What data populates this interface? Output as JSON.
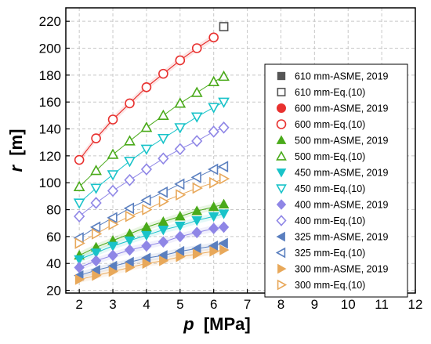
{
  "chart_data": {
    "type": "scatter",
    "title": "",
    "xlabel": "p [MPa]",
    "ylabel": "r [m]",
    "xlabel_var": "p",
    "xlabel_unit": "[MPa]",
    "ylabel_var": "r",
    "ylabel_unit": "[m]",
    "xlim": [
      1.6,
      12
    ],
    "ylim": [
      18,
      230
    ],
    "xticks": [
      2,
      3,
      4,
      5,
      6,
      7,
      8,
      9,
      10,
      11,
      12
    ],
    "yticks": [
      20,
      40,
      60,
      80,
      100,
      120,
      140,
      160,
      180,
      200,
      220
    ],
    "grid": true,
    "legend_position": "right",
    "series": [
      {
        "name": "610 mm-ASME, 2019",
        "marker": "square",
        "filled": true,
        "color": "#555555",
        "x": [
          6.3
        ],
        "y": [
          216
        ]
      },
      {
        "name": "610 mm-Eq.(10)",
        "marker": "square",
        "filled": false,
        "color": "#555555",
        "x": [
          6.3
        ],
        "y": [
          216
        ]
      },
      {
        "name": "600 mm-ASME, 2019",
        "marker": "circle",
        "filled": true,
        "color": "#e8312f",
        "x": [
          2.0,
          2.5,
          3.0,
          3.5,
          4.0,
          4.5,
          5.0,
          5.5,
          6.0
        ],
        "y": [
          117,
          133,
          147,
          159,
          171,
          181,
          191,
          200,
          208
        ]
      },
      {
        "name": "600 mm-Eq.(10)",
        "marker": "circle",
        "filled": false,
        "color": "#e8312f",
        "x": [
          2.0,
          2.5,
          3.0,
          3.5,
          4.0,
          4.5,
          5.0,
          5.5,
          6.0
        ],
        "y": [
          117,
          133,
          147,
          159,
          171,
          181,
          191,
          200,
          208
        ]
      },
      {
        "name": "500 mm-ASME, 2019",
        "marker": "triangle-up",
        "filled": true,
        "color": "#4aaa1a",
        "x": [
          2.0,
          2.5,
          3.0,
          3.5,
          4.0,
          4.5,
          5.0,
          5.5,
          6.0,
          6.3
        ],
        "y": [
          46,
          52,
          57,
          62,
          67,
          71,
          75,
          79,
          82,
          84
        ]
      },
      {
        "name": "500 mm-Eq.(10)",
        "marker": "triangle-up",
        "filled": false,
        "color": "#4aaa1a",
        "x": [
          2.0,
          2.5,
          3.0,
          3.5,
          4.0,
          4.5,
          5.0,
          5.5,
          6.0,
          6.3
        ],
        "y": [
          97,
          109,
          121,
          131,
          141,
          150,
          159,
          167,
          175,
          179
        ]
      },
      {
        "name": "450 mm-ASME, 2019",
        "marker": "triangle-down",
        "filled": true,
        "color": "#19c3c9",
        "x": [
          2.0,
          2.5,
          3.0,
          3.5,
          4.0,
          4.5,
          5.0,
          5.5,
          6.0,
          6.3
        ],
        "y": [
          43,
          48,
          53,
          57,
          61,
          65,
          68,
          72,
          75,
          77
        ]
      },
      {
        "name": "450 mm-Eq.(10)",
        "marker": "triangle-down",
        "filled": false,
        "color": "#19c3c9",
        "x": [
          2.0,
          2.5,
          3.0,
          3.5,
          4.0,
          4.5,
          5.0,
          5.5,
          6.0,
          6.3
        ],
        "y": [
          85,
          96,
          106,
          116,
          125,
          133,
          141,
          149,
          156,
          160
        ]
      },
      {
        "name": "400 mm-ASME, 2019",
        "marker": "diamond",
        "filled": true,
        "color": "#8f86e6",
        "x": [
          2.0,
          2.5,
          3.0,
          3.5,
          4.0,
          4.5,
          5.0,
          5.5,
          6.0,
          6.3
        ],
        "y": [
          37,
          42,
          46,
          50,
          53,
          56,
          60,
          63,
          66,
          67
        ]
      },
      {
        "name": "400 mm-Eq.(10)",
        "marker": "diamond",
        "filled": false,
        "color": "#8f86e6",
        "x": [
          2.0,
          2.5,
          3.0,
          3.5,
          4.0,
          4.5,
          5.0,
          5.5,
          6.0,
          6.3
        ],
        "y": [
          75,
          85,
          94,
          102,
          110,
          118,
          125,
          131,
          138,
          141
        ]
      },
      {
        "name": "325 mm-ASME, 2019",
        "marker": "triangle-left",
        "filled": true,
        "color": "#5a7fbf",
        "x": [
          2.0,
          2.5,
          3.0,
          3.5,
          4.0,
          4.5,
          5.0,
          5.5,
          6.0,
          6.3
        ],
        "y": [
          31,
          35,
          38,
          41,
          44,
          46,
          49,
          51,
          53,
          55
        ]
      },
      {
        "name": "325 mm-Eq.(10)",
        "marker": "triangle-left",
        "filled": false,
        "color": "#5a7fbf",
        "x": [
          2.0,
          2.5,
          3.0,
          3.5,
          4.0,
          4.5,
          5.0,
          5.5,
          6.0,
          6.3
        ],
        "y": [
          59,
          67,
          74,
          81,
          87,
          93,
          99,
          104,
          110,
          112
        ]
      },
      {
        "name": "300 mm-ASME, 2019",
        "marker": "triangle-right",
        "filled": true,
        "color": "#e8a85a",
        "x": [
          2.0,
          2.5,
          3.0,
          3.5,
          4.0,
          4.5,
          5.0,
          5.5,
          6.0,
          6.3
        ],
        "y": [
          28,
          31,
          34,
          37,
          40,
          42,
          45,
          47,
          49,
          50
        ]
      },
      {
        "name": "300 mm-Eq.(10)",
        "marker": "triangle-right",
        "filled": false,
        "color": "#e8a85a",
        "x": [
          2.0,
          2.5,
          3.0,
          3.5,
          4.0,
          4.5,
          5.0,
          5.5,
          6.0,
          6.3
        ],
        "y": [
          55,
          62,
          69,
          75,
          80,
          86,
          91,
          96,
          100,
          103
        ]
      }
    ]
  }
}
